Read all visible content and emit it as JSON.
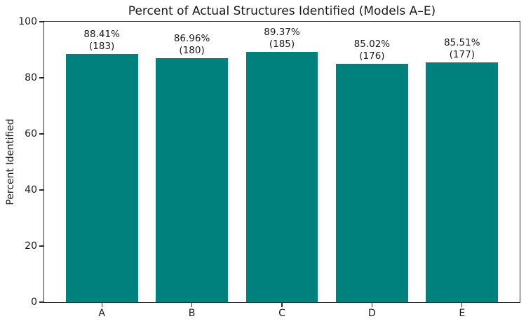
{
  "chart_data": {
    "type": "bar",
    "title": "Percent of Actual Structures Identified (Models A–E)",
    "xlabel": "",
    "ylabel": "Percent Identified",
    "categories": [
      "A",
      "B",
      "C",
      "D",
      "E"
    ],
    "values": [
      88.41,
      86.96,
      89.37,
      85.02,
      85.51
    ],
    "counts": [
      183,
      180,
      185,
      176,
      177
    ],
    "bar_labels": [
      [
        "88.41%",
        "(183)"
      ],
      [
        "86.96%",
        "(180)"
      ],
      [
        "89.37%",
        "(185)"
      ],
      [
        "85.02%",
        "(176)"
      ],
      [
        "85.51%",
        "(177)"
      ]
    ],
    "ylim": [
      0,
      100
    ],
    "yticks": [
      0,
      20,
      40,
      60,
      80,
      100
    ],
    "bar_color": "#00817d",
    "spine_color": "#2b2b2b",
    "grid": false,
    "legend": null
  }
}
